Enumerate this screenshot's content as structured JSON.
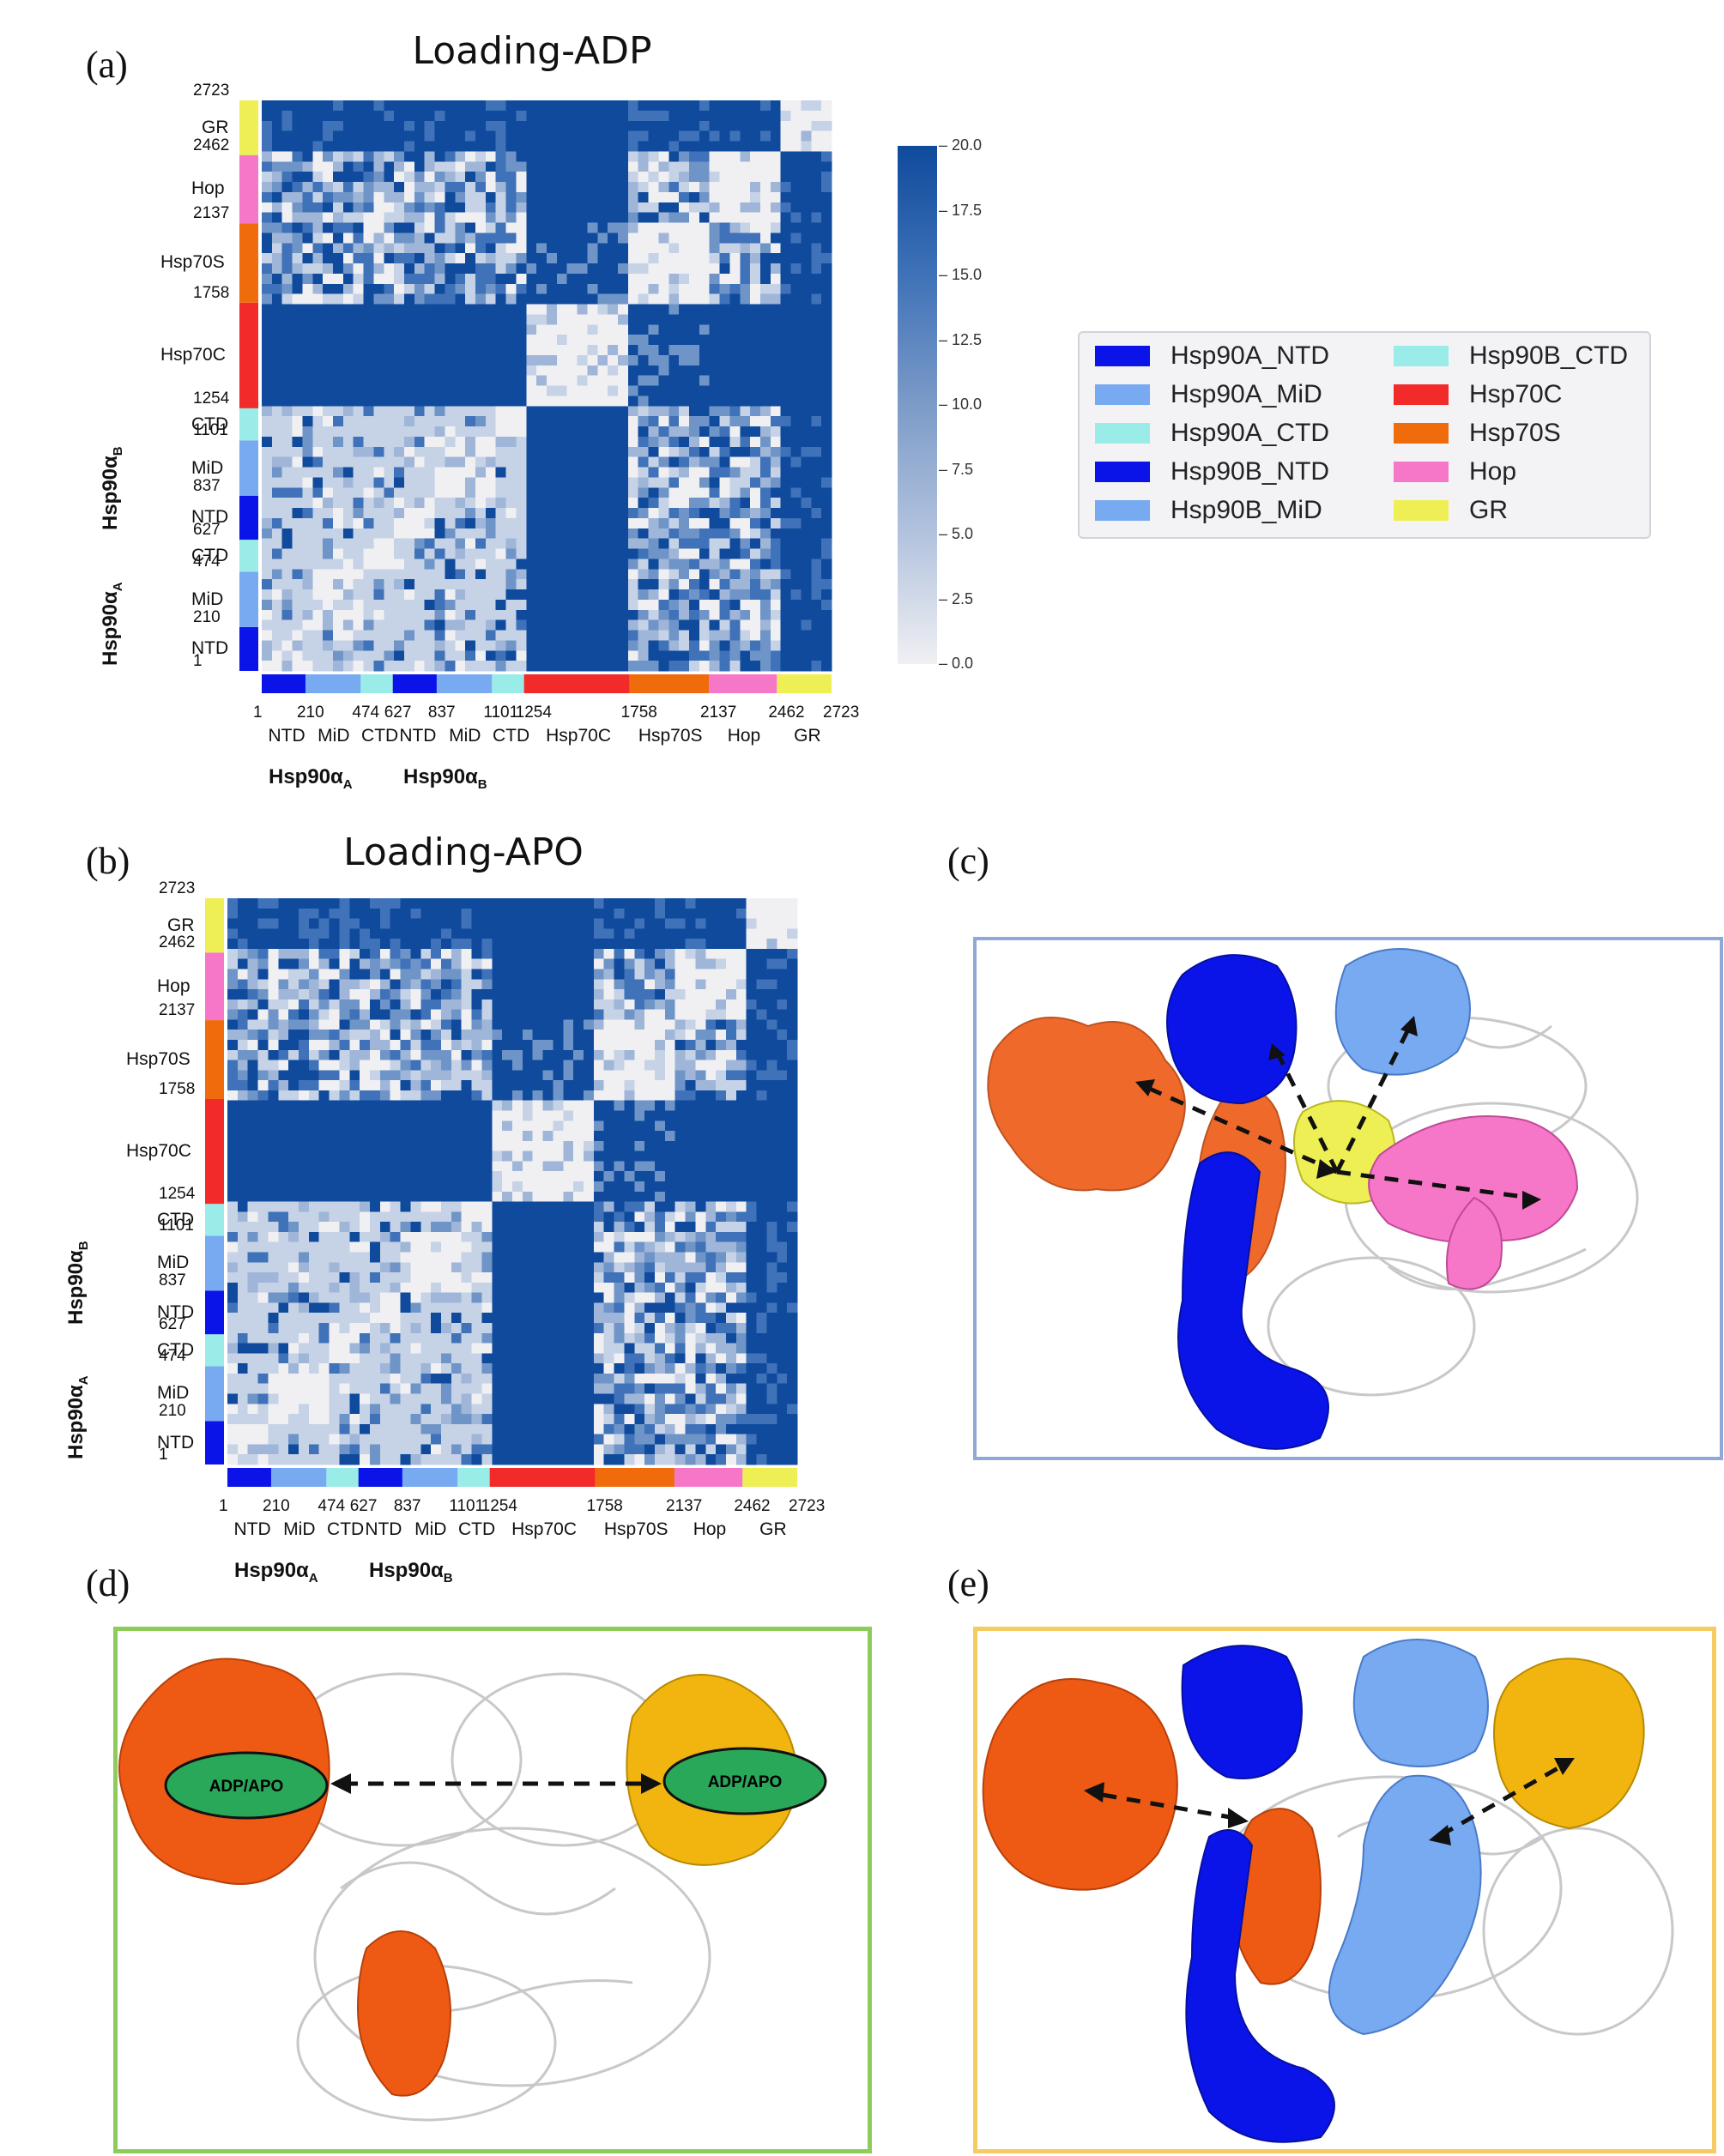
{
  "panels": {
    "a": {
      "label": "(a)",
      "title": "Loading-ADP"
    },
    "b": {
      "label": "(b)",
      "title": "Loading-APO"
    },
    "c": {
      "label": "(c)"
    },
    "d": {
      "label": "(d)",
      "ellipse_label": "ADP/APO"
    },
    "e": {
      "label": "(e)"
    }
  },
  "heatmap": {
    "boundaries": [
      "1",
      "210",
      "474",
      "627",
      "837",
      "1101",
      "1254",
      "1758",
      "2137",
      "2462",
      "2723"
    ],
    "domain_labels": [
      "NTD",
      "MiD",
      "CTD",
      "NTD",
      "MiD",
      "CTD",
      "Hsp70C",
      "Hsp70S",
      "Hop",
      "GR"
    ],
    "group_labels": [
      {
        "main": "Hsp90α",
        "sub": "A"
      },
      {
        "main": "Hsp90α",
        "sub": "B"
      }
    ]
  },
  "colorbar": {
    "ticks": [
      "20.0",
      "17.5",
      "15.0",
      "12.5",
      "10.0",
      "7.5",
      "5.0",
      "2.5",
      "0.0"
    ],
    "min_color": "#f0f0f3",
    "max_color": "#0f4a9c"
  },
  "legend": {
    "items": [
      {
        "label": "Hsp90A_NTD",
        "color": "#0a14e8"
      },
      {
        "label": "Hsp90A_MiD",
        "color": "#77aaf0"
      },
      {
        "label": "Hsp90A_CTD",
        "color": "#9aece8"
      },
      {
        "label": "Hsp90B_NTD",
        "color": "#0a14e8"
      },
      {
        "label": "Hsp90B_MiD",
        "color": "#77aaf0"
      },
      {
        "label": "Hsp90B_CTD",
        "color": "#9aece8"
      },
      {
        "label": "Hsp70C",
        "color": "#f22a2a"
      },
      {
        "label": "Hsp70S",
        "color": "#ef6b0c"
      },
      {
        "label": "Hop",
        "color": "#f677c8"
      },
      {
        "label": "GR",
        "color": "#eeee55"
      }
    ]
  },
  "colors": {
    "hsp90_ntd": "#0a14e8",
    "hsp90_mid": "#77aaf0",
    "hsp90_ctd": "#9aece8",
    "hsp70c": "#f22a2a",
    "hsp70s": "#ef6b0c",
    "hop": "#f677c8",
    "gr": "#eeee55",
    "frame_c": "#90a8d8",
    "frame_d": "#8ecc5a",
    "frame_e": "#f6cc62",
    "ellipse": "#2aa85a",
    "hsp70_orange": "#ee5a14",
    "hsp70_gold": "#f2b510",
    "structure_gray": "#c8c8c8"
  }
}
